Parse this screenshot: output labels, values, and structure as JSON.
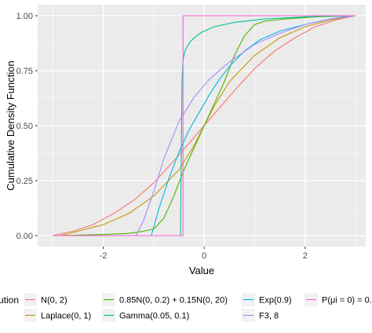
{
  "chart_data": {
    "type": "line",
    "xlabel": "Value",
    "ylabel": "Cumulative Density Function",
    "xlim": [
      -3.3,
      3.2
    ],
    "ylim": [
      -0.05,
      1.05
    ],
    "x_ticks": [
      -2,
      0,
      2
    ],
    "x_tick_labels": [
      "-2",
      "0",
      "2"
    ],
    "y_ticks": [
      0,
      0.25,
      0.5,
      0.75,
      1
    ],
    "y_tick_labels": [
      "0.00",
      "0.25",
      "0.50",
      "0.75",
      "1.00"
    ],
    "grid": true,
    "panel_background": "#ebebeb",
    "legend_position": "bottom",
    "legend_title": "ution",
    "series": [
      {
        "name": "N(0, 2)",
        "color": "#F8766D",
        "x": [
          -3.0,
          -2.6,
          -2.2,
          -1.8,
          -1.4,
          -1.0,
          -0.6,
          -0.3,
          0.0,
          0.3,
          0.6,
          1.0,
          1.4,
          1.8,
          2.2,
          2.6,
          3.0
        ],
        "y": [
          0.0,
          0.02,
          0.05,
          0.1,
          0.16,
          0.24,
          0.34,
          0.42,
          0.5,
          0.58,
          0.66,
          0.76,
          0.84,
          0.9,
          0.95,
          0.98,
          1.0
        ]
      },
      {
        "name": "Laplace(0, 1)",
        "color": "#C49A00",
        "x": [
          -2.85,
          -2.5,
          -2.0,
          -1.5,
          -1.0,
          -0.5,
          -0.2,
          0.0,
          0.2,
          0.5,
          1.0,
          1.5,
          2.0,
          2.5,
          2.95
        ],
        "y": [
          0.0,
          0.02,
          0.05,
          0.1,
          0.18,
          0.3,
          0.41,
          0.5,
          0.59,
          0.7,
          0.82,
          0.9,
          0.95,
          0.98,
          1.0
        ]
      },
      {
        "name": "0.85N(0, 0.2) + 0.15N(0, 20)",
        "color": "#53B400",
        "x": [
          -2.9,
          -2.0,
          -1.5,
          -1.2,
          -1.0,
          -0.8,
          -0.6,
          -0.4,
          -0.2,
          0.0,
          0.2,
          0.4,
          0.6,
          0.8,
          1.0,
          1.2,
          1.6,
          2.2,
          3.0
        ],
        "y": [
          0.0,
          0.005,
          0.01,
          0.02,
          0.03,
          0.08,
          0.18,
          0.3,
          0.4,
          0.5,
          0.6,
          0.7,
          0.82,
          0.91,
          0.96,
          0.975,
          0.985,
          0.995,
          1.0
        ]
      },
      {
        "name": "Gamma(0.05, 0.1)",
        "color": "#00C094",
        "x": [
          -0.47,
          -0.44,
          -0.42,
          -0.38,
          -0.3,
          -0.2,
          -0.05,
          0.2,
          0.6,
          1.2,
          2.0,
          2.8
        ],
        "y": [
          0.0,
          0.7,
          0.8,
          0.84,
          0.875,
          0.9,
          0.925,
          0.95,
          0.97,
          0.985,
          0.995,
          1.0
        ]
      },
      {
        "name": "Exp(0.9)",
        "color": "#00B6EB",
        "x": [
          -1.05,
          -0.9,
          -0.7,
          -0.5,
          -0.3,
          -0.1,
          0.1,
          0.3,
          0.5,
          0.8,
          1.1,
          1.5,
          2.0,
          2.5,
          2.9
        ],
        "y": [
          0.0,
          0.12,
          0.26,
          0.38,
          0.48,
          0.56,
          0.64,
          0.71,
          0.77,
          0.84,
          0.89,
          0.93,
          0.96,
          0.985,
          1.0
        ]
      },
      {
        "name": "F3, 8",
        "color": "#A58AFF",
        "x": [
          -1.35,
          -1.2,
          -1.0,
          -0.8,
          -0.5,
          -0.2,
          0.1,
          0.5,
          1.0,
          1.5,
          2.0,
          2.5,
          3.0
        ],
        "y": [
          0.0,
          0.07,
          0.2,
          0.35,
          0.52,
          0.63,
          0.71,
          0.79,
          0.87,
          0.92,
          0.96,
          0.985,
          1.0
        ]
      },
      {
        "name": "P(μi = 0) = 0.",
        "color": "#FB61D7",
        "x": [
          -3.0,
          -0.42,
          -0.42,
          3.0
        ],
        "y": [
          0.0,
          0.0,
          1.0,
          1.0
        ]
      }
    ],
    "legend": [
      {
        "label": "N(0, 2)",
        "color": "#F8766D",
        "col": 0,
        "row": 0
      },
      {
        "label": "Laplace(0, 1)",
        "color": "#C49A00",
        "col": 0,
        "row": 1
      },
      {
        "label": "0.85N(0, 0.2) + 0.15N(0, 20)",
        "color": "#53B400",
        "col": 1,
        "row": 0
      },
      {
        "label": "Gamma(0.05, 0.1)",
        "color": "#00C094",
        "col": 1,
        "row": 1
      },
      {
        "label": "Exp(0.9)",
        "color": "#00B6EB",
        "col": 2,
        "row": 0
      },
      {
        "label": "F3, 8",
        "color": "#A58AFF",
        "col": 2,
        "row": 1
      },
      {
        "label": "P(μi = 0) = 0.",
        "color": "#FB61D7",
        "col": 3,
        "row": 0
      }
    ]
  }
}
